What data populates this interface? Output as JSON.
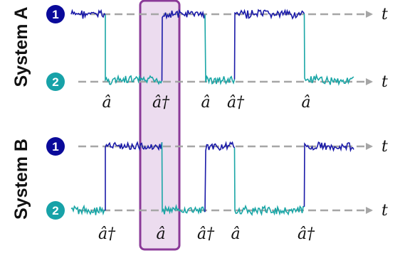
{
  "colors": {
    "level1": "#1a1aa8",
    "level2": "#1aa6a6",
    "badge1": "#0a0a9a",
    "badge2": "#17a2a8",
    "dashed": "#a6a6a6",
    "highlight_fill": "#ecdcef",
    "highlight_stroke": "#8b3a98"
  },
  "systems": [
    {
      "label": "System A",
      "level_badges": [
        "1",
        "2"
      ],
      "axis_label": "t",
      "operators": [
        "â",
        "â†",
        "â",
        "â†",
        "â"
      ],
      "initial_level": 1
    },
    {
      "label": "System B",
      "level_badges": [
        "1",
        "2"
      ],
      "axis_label": "t",
      "operators": [
        "â†",
        "â",
        "â†",
        "â",
        "â†"
      ],
      "initial_level": 2
    }
  ]
}
